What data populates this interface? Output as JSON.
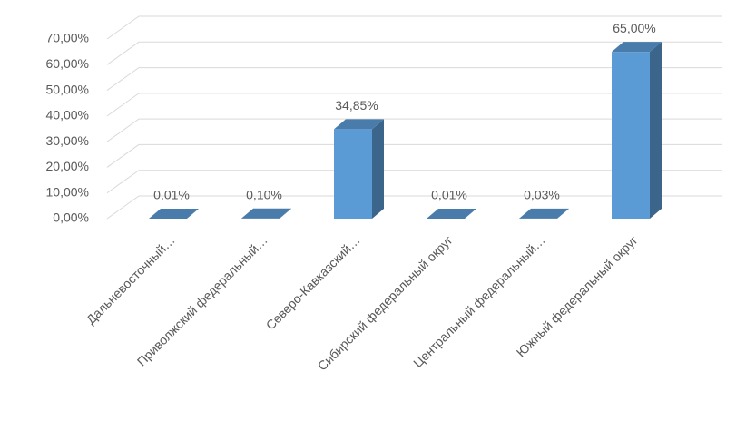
{
  "chart_data": {
    "type": "bar3d",
    "categories": [
      "Дальневосточный…",
      "Приволжский федеральный…",
      "Северо-Кавказский…",
      "Сибирский федеральный округ",
      "Центральный федеральный…",
      "Южный федеральный округ"
    ],
    "values": [
      0.01,
      0.1,
      34.85,
      0.01,
      0.03,
      65.0
    ],
    "value_labels": [
      "0,01%",
      "0,10%",
      "34,85%",
      "0,01%",
      "0,03%",
      "65,00%"
    ],
    "color": "#5b9bd5",
    "ylim": [
      0,
      70
    ],
    "yticks": [
      {
        "value": 0,
        "label": "0,00%"
      },
      {
        "value": 10,
        "label": "10,00%"
      },
      {
        "value": 20,
        "label": "20,00%"
      },
      {
        "value": 30,
        "label": "30,00%"
      },
      {
        "value": 40,
        "label": "40,00%"
      },
      {
        "value": 50,
        "label": "50,00%"
      },
      {
        "value": 60,
        "label": "60,00%"
      },
      {
        "value": 70,
        "label": "70,00%"
      }
    ],
    "grid": true
  }
}
